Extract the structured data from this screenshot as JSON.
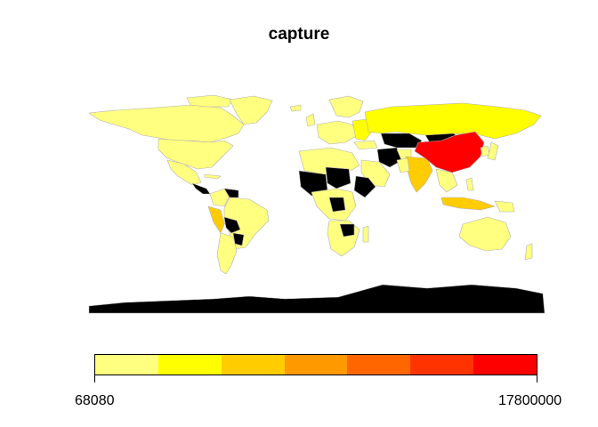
{
  "title": "capture",
  "legend": {
    "min_label": "68080",
    "max_label": "17800000",
    "colors": [
      "#FFFF80",
      "#FFFF00",
      "#FFCC00",
      "#FF9900",
      "#FF6600",
      "#FF3300",
      "#FF0000"
    ]
  },
  "map_colors": {
    "low": "#FFFF80",
    "mid": "#FFFF00",
    "midhigh": "#FFCC00",
    "high": "#FF0000",
    "no_data": "#000000",
    "border": "#B0B0B0"
  }
}
